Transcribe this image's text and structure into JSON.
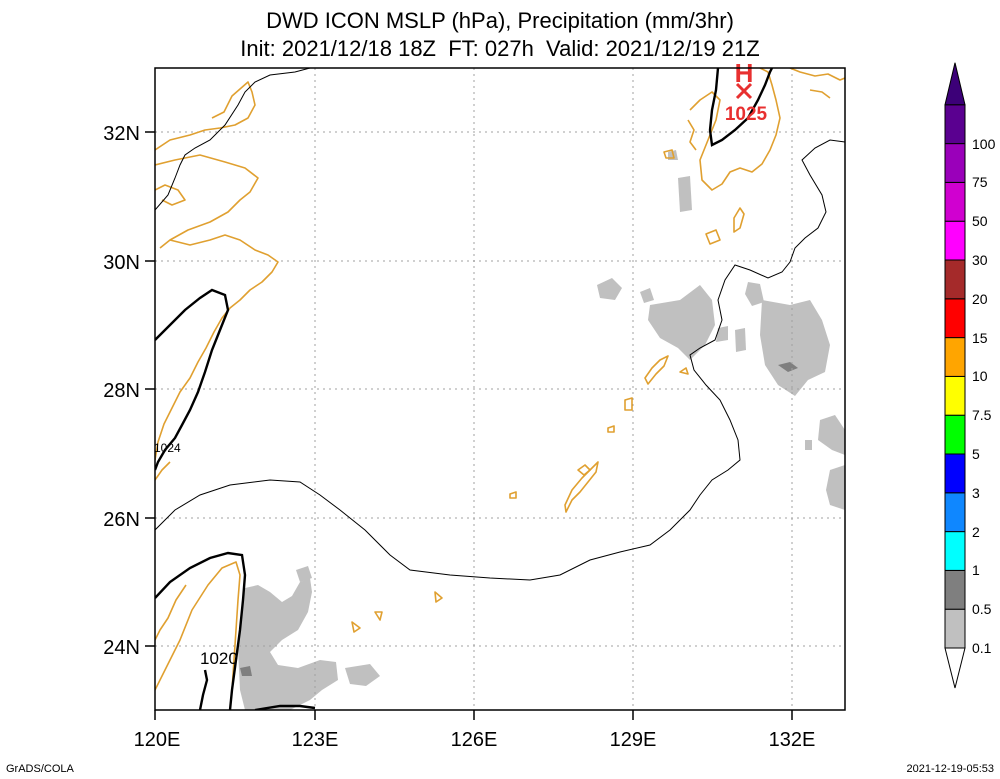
{
  "title": {
    "line1": "DWD ICON MSLP (hPa), Precipitation (mm/3hr)",
    "line2": "Init: 2021/12/18 18Z  FT: 027h  Valid: 2021/12/19 21Z"
  },
  "axes": {
    "lat_labels": [
      "32N",
      "30N",
      "28N",
      "26N",
      "24N"
    ],
    "lon_labels": [
      "120E",
      "123E",
      "126E",
      "129E",
      "132E"
    ]
  },
  "pressure_labels": {
    "high_marker": "H",
    "high_value": "1025",
    "isobar_1024": "1024",
    "isobar_1020": "1020"
  },
  "colorbar": {
    "levels": [
      {
        "label": "0.1",
        "color": "#c0c0c0"
      },
      {
        "label": "0.5",
        "color": "#7f7f7f"
      },
      {
        "label": "1",
        "color": "#00ffff"
      },
      {
        "label": "2",
        "color": "#0f87ff"
      },
      {
        "label": "3",
        "color": "#0000ff"
      },
      {
        "label": "5",
        "color": "#00ff00"
      },
      {
        "label": "7.5",
        "color": "#ffff00"
      },
      {
        "label": "10",
        "color": "#ffa500"
      },
      {
        "label": "15",
        "color": "#ff0000"
      },
      {
        "label": "20",
        "color": "#a52a2a"
      },
      {
        "label": "30",
        "color": "#ff00ff"
      },
      {
        "label": "50",
        "color": "#d000d0"
      },
      {
        "label": "75",
        "color": "#9a00ba"
      },
      {
        "label": "100",
        "color": "#5a0090"
      }
    ],
    "top_color": "#3c0078"
  },
  "footer": {
    "left": "GrADS/COLA",
    "right": "2021-12-19-05:53"
  },
  "colors": {
    "coastline": "#e0a030",
    "high": "#e83030",
    "precip_light": "#c0c0c0",
    "precip_dark": "#7f7f7f"
  }
}
